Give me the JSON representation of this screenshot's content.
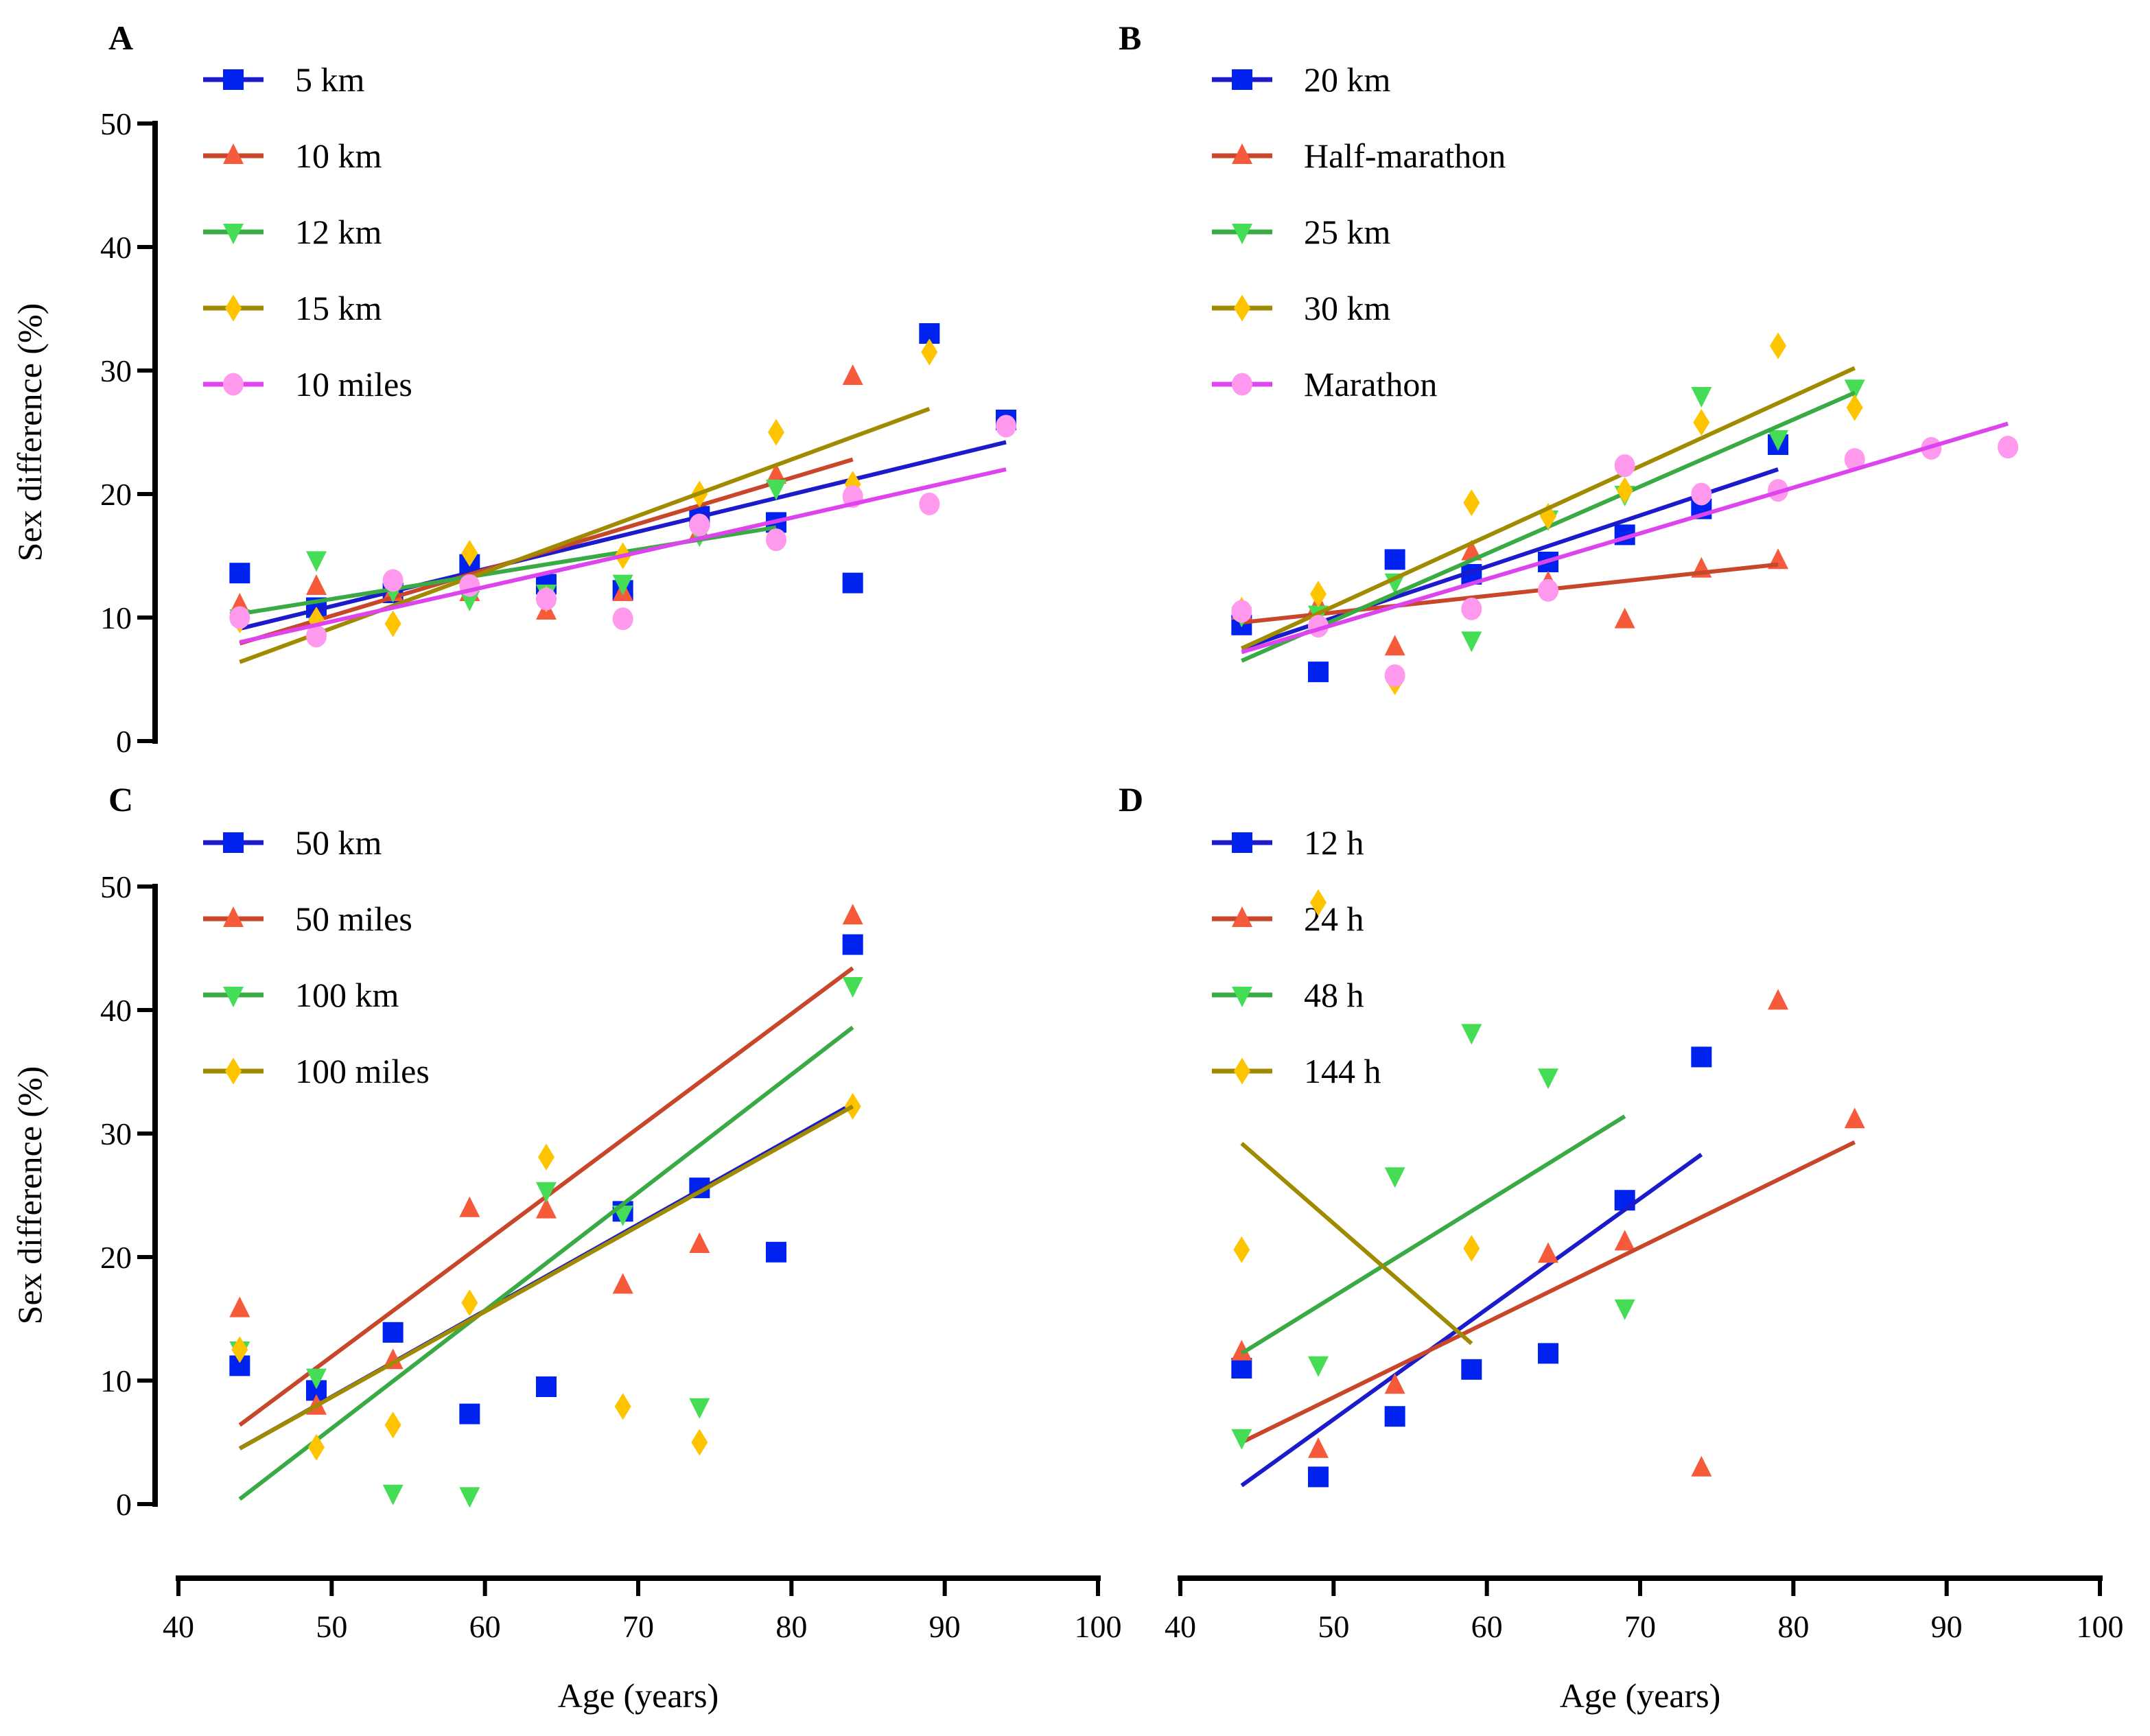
{
  "chart_data": [
    {
      "type": "scatter",
      "panel": "A",
      "ylabel": "Sex difference (%)",
      "xlabel": "",
      "ylim": [
        0,
        50
      ],
      "xlim": [
        40,
        100
      ],
      "yticks": [
        "0",
        "10",
        "20",
        "30",
        "40",
        "50"
      ],
      "series": [
        {
          "name": "5 km",
          "color": "#0022ee",
          "line_color": "#1b1bcc",
          "marker": "square",
          "x": [
            44,
            49,
            54,
            59,
            64,
            69,
            74,
            79,
            84,
            89,
            94
          ],
          "y": [
            13.6,
            10.8,
            12,
            14.3,
            12.7,
            12.2,
            18.2,
            17.7,
            12.8,
            33,
            26
          ],
          "trend": [
            [
              44,
              9.1
            ],
            [
              94,
              24.2
            ]
          ]
        },
        {
          "name": "10 km",
          "color": "#f55a3a",
          "line_color": "#c8462a",
          "marker": "triangle-up",
          "x": [
            44,
            49,
            54,
            59,
            64,
            69,
            74,
            79,
            84
          ],
          "y": [
            11,
            12.5,
            12,
            12,
            10.5,
            12,
            17,
            21.5,
            29.5
          ],
          "trend": [
            [
              44,
              7.9
            ],
            [
              84,
              22.8
            ]
          ]
        },
        {
          "name": "12 km",
          "color": "#44dd55",
          "line_color": "#3aaa44",
          "marker": "triangle-down",
          "x": [
            44,
            49,
            54,
            59,
            64,
            69,
            74,
            79
          ],
          "y": [
            10,
            14.7,
            12.2,
            11.5,
            12,
            12.8,
            16.7,
            20.5
          ],
          "trend": [
            [
              44,
              10.3
            ],
            [
              79,
              17.3
            ]
          ]
        },
        {
          "name": "15 km",
          "color": "#ffc400",
          "line_color": "#a08a00",
          "marker": "diamond",
          "x": [
            44,
            49,
            54,
            59,
            64,
            69,
            74,
            79,
            84,
            89
          ],
          "y": [
            9.8,
            9.8,
            9.5,
            15.2,
            11.5,
            15,
            20,
            25,
            20.8,
            31.5
          ],
          "trend": [
            [
              44,
              6.4
            ],
            [
              89,
              26.9
            ]
          ]
        },
        {
          "name": "10 miles",
          "color": "#ff99ee",
          "line_color": "#dd44ee",
          "marker": "circle",
          "x": [
            44,
            49,
            54,
            59,
            64,
            69,
            74,
            79,
            84,
            89,
            94
          ],
          "y": [
            10,
            8.5,
            13,
            12.6,
            11.5,
            9.9,
            17.5,
            16.3,
            19.8,
            19.2,
            25.5
          ],
          "trend": [
            [
              44,
              8
            ],
            [
              94,
              22
            ]
          ]
        }
      ]
    },
    {
      "type": "scatter",
      "panel": "B",
      "ylim": [
        0,
        50
      ],
      "xlim": [
        40,
        100
      ],
      "series": [
        {
          "name": "20 km",
          "color": "#0022ee",
          "line_color": "#1b1bcc",
          "marker": "square",
          "x": [
            44,
            49,
            54,
            59,
            64,
            69,
            74,
            79
          ],
          "y": [
            9.4,
            5.6,
            14.7,
            13.5,
            14.5,
            16.7,
            18.8,
            24
          ],
          "trend": [
            [
              44,
              7.5
            ],
            [
              79,
              22
            ]
          ]
        },
        {
          "name": "Half-marathon",
          "color": "#f55a3a",
          "line_color": "#c8462a",
          "marker": "triangle-up",
          "x": [
            44,
            49,
            54,
            59,
            64,
            69,
            74,
            79
          ],
          "y": [
            10.5,
            11,
            7.6,
            15.3,
            12.8,
            9.8,
            13.9,
            14.6
          ],
          "trend": [
            [
              44,
              9.6
            ],
            [
              79,
              14.3
            ]
          ]
        },
        {
          "name": "25 km",
          "color": "#44dd55",
          "line_color": "#3aaa44",
          "marker": "triangle-down",
          "x": [
            44,
            49,
            54,
            59,
            64,
            69,
            74,
            79,
            84
          ],
          "y": [
            10.2,
            10.3,
            12.9,
            8.2,
            18,
            20,
            28,
            24.5,
            28.6
          ],
          "trend": [
            [
              44,
              6.5
            ],
            [
              84,
              28.2
            ]
          ]
        },
        {
          "name": "30 km",
          "color": "#ffc400",
          "line_color": "#a08a00",
          "marker": "diamond",
          "x": [
            44,
            49,
            54,
            59,
            64,
            69,
            74,
            79,
            84
          ],
          "y": [
            10.6,
            11.9,
            4.8,
            19.3,
            18.2,
            20.3,
            25.8,
            32,
            27
          ],
          "trend": [
            [
              44,
              7.5
            ],
            [
              84,
              30.2
            ]
          ]
        },
        {
          "name": "Marathon",
          "color": "#ff99ee",
          "line_color": "#dd44ee",
          "marker": "circle",
          "x": [
            44,
            49,
            54,
            59,
            64,
            69,
            74,
            79,
            84,
            89,
            94
          ],
          "y": [
            10.5,
            9.3,
            5.3,
            10.7,
            12.2,
            22.3,
            20,
            20.3,
            22.8,
            23.7,
            23.8
          ],
          "trend": [
            [
              44,
              7.2
            ],
            [
              94,
              25.7
            ]
          ]
        }
      ]
    },
    {
      "type": "scatter",
      "panel": "C",
      "ylabel": "Sex difference (%)",
      "xlabel": "Age (years)",
      "ylim": [
        0,
        50
      ],
      "xlim": [
        40,
        100
      ],
      "yticks": [
        "0",
        "10",
        "20",
        "30",
        "40",
        "50"
      ],
      "xticks": [
        "40",
        "50",
        "60",
        "70",
        "80",
        "90",
        "100"
      ],
      "series": [
        {
          "name": "50 km",
          "color": "#0022ee",
          "line_color": "#1b1bcc",
          "marker": "square",
          "x": [
            44,
            49,
            54,
            59,
            64,
            69,
            74,
            79,
            84
          ],
          "y": [
            11.2,
            9.2,
            13.9,
            7.3,
            9.5,
            23.7,
            25.6,
            20.4,
            45.3
          ],
          "trend": [
            [
              44,
              4.5
            ],
            [
              84,
              32.4
            ]
          ]
        },
        {
          "name": "50 miles",
          "color": "#f55a3a",
          "line_color": "#c8462a",
          "marker": "triangle-up",
          "x": [
            44,
            49,
            54,
            59,
            64,
            69,
            74,
            84
          ],
          "y": [
            15.8,
            7.9,
            11.6,
            23.9,
            23.8,
            17.7,
            21,
            47.6
          ],
          "trend": [
            [
              44,
              6.4
            ],
            [
              84,
              43.4
            ]
          ]
        },
        {
          "name": "100 km",
          "color": "#44dd55",
          "line_color": "#3aaa44",
          "marker": "triangle-down",
          "x": [
            44,
            49,
            54,
            59,
            64,
            69,
            74,
            84
          ],
          "y": [
            12.5,
            10.3,
            0.9,
            0.7,
            25.4,
            23.5,
            7.9,
            42
          ],
          "trend": [
            [
              44,
              0.4
            ],
            [
              84,
              38.6
            ]
          ]
        },
        {
          "name": "100 miles",
          "color": "#ffc400",
          "line_color": "#a08a00",
          "marker": "diamond",
          "x": [
            44,
            49,
            54,
            59,
            64,
            69,
            74,
            84
          ],
          "y": [
            12.5,
            4.6,
            6.4,
            16.3,
            28.1,
            7.9,
            5,
            32.2
          ],
          "trend": [
            [
              44,
              4.5
            ],
            [
              84,
              32.2
            ]
          ]
        }
      ]
    },
    {
      "type": "scatter",
      "panel": "D",
      "xlabel": "Age (years)",
      "ylim": [
        0,
        50
      ],
      "xlim": [
        40,
        100
      ],
      "xticks": [
        "40",
        "50",
        "60",
        "70",
        "80",
        "90",
        "100"
      ],
      "series": [
        {
          "name": "12 h",
          "color": "#0022ee",
          "line_color": "#1b1bcc",
          "marker": "square",
          "x": [
            44,
            49,
            54,
            59,
            64,
            69,
            74
          ],
          "y": [
            11,
            2.2,
            7.1,
            10.9,
            12.2,
            24.6,
            36.2
          ],
          "trend": [
            [
              44,
              1.5
            ],
            [
              74,
              28.3
            ]
          ]
        },
        {
          "name": "24 h",
          "color": "#f55a3a",
          "line_color": "#c8462a",
          "marker": "triangle-up",
          "x": [
            44,
            49,
            54,
            64,
            69,
            74,
            79,
            84
          ],
          "y": [
            12.3,
            4.4,
            9.6,
            20.2,
            21.2,
            2.9,
            40.7,
            31.1
          ],
          "trend": [
            [
              44,
              5
            ],
            [
              84,
              29.3
            ]
          ]
        },
        {
          "name": "48 h",
          "color": "#44dd55",
          "line_color": "#3aaa44",
          "marker": "triangle-down",
          "x": [
            44,
            49,
            54,
            59,
            64,
            69
          ],
          "y": [
            5.4,
            11.3,
            26.6,
            38.2,
            34.6,
            15.9
          ],
          "trend": [
            [
              44,
              12.2
            ],
            [
              69,
              31.4
            ]
          ]
        },
        {
          "name": "144 h",
          "color": "#ffc400",
          "line_color": "#a08a00",
          "marker": "diamond",
          "x": [
            44,
            49,
            59
          ],
          "y": [
            20.6,
            48.7,
            20.7
          ],
          "trend": [
            [
              44,
              29.2
            ],
            [
              59,
              13
            ]
          ]
        }
      ]
    }
  ]
}
